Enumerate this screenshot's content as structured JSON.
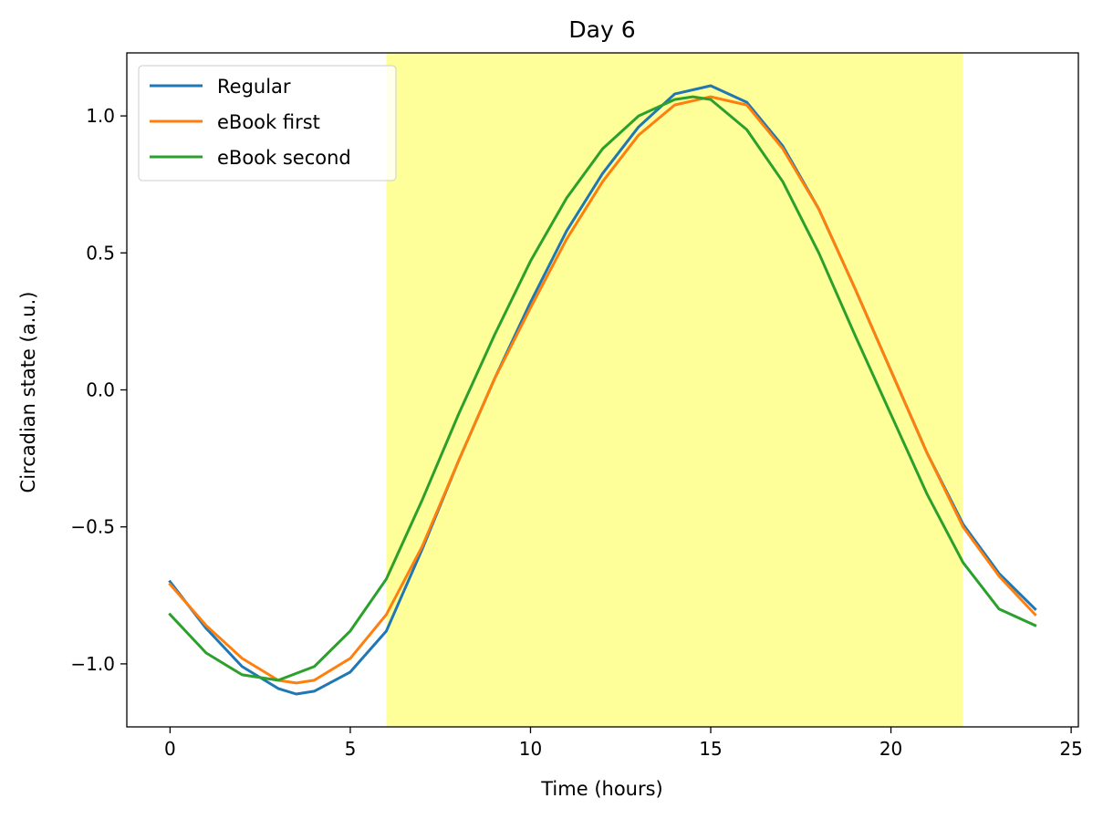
{
  "chart_data": {
    "type": "line",
    "title": "Day 6",
    "xlabel": "Time (hours)",
    "ylabel": "Circadian state (a.u.)",
    "xlim": [
      -1.2,
      25.2
    ],
    "ylim": [
      -1.23,
      1.23
    ],
    "xticks": [
      0,
      5,
      10,
      15,
      20,
      25
    ],
    "xtick_labels": [
      "0",
      "5",
      "10",
      "15",
      "20",
      "25"
    ],
    "yticks": [
      -1.0,
      -0.5,
      0.0,
      0.5,
      1.0
    ],
    "ytick_labels": [
      "−1.0",
      "−0.5",
      "0.0",
      "0.5",
      "1.0"
    ],
    "grid": false,
    "legend_position": "top-left",
    "light_period": {
      "start": 6,
      "end": 22,
      "color": "#ffff99"
    },
    "series": [
      {
        "name": "Regular",
        "color": "#1f77b4",
        "x": [
          0,
          1,
          2,
          3,
          3.5,
          4,
          5,
          6,
          7,
          8,
          9,
          10,
          11,
          12,
          13,
          14,
          15,
          16,
          17,
          18,
          19,
          20,
          21,
          22,
          23,
          24
        ],
        "y": [
          -0.7,
          -0.87,
          -1.01,
          -1.09,
          -1.11,
          -1.1,
          -1.03,
          -0.88,
          -0.58,
          -0.26,
          0.04,
          0.32,
          0.58,
          0.79,
          0.96,
          1.08,
          1.11,
          1.05,
          0.89,
          0.66,
          0.37,
          0.07,
          -0.23,
          -0.49,
          -0.67,
          -0.8
        ]
      },
      {
        "name": "eBook first",
        "color": "#ff7f0e",
        "x": [
          0,
          1,
          2,
          3,
          3.5,
          4,
          5,
          6,
          7,
          8,
          9,
          10,
          11,
          12,
          13,
          14,
          15,
          16,
          17,
          18,
          19,
          20,
          21,
          22,
          23,
          24
        ],
        "y": [
          -0.71,
          -0.86,
          -0.98,
          -1.06,
          -1.07,
          -1.06,
          -0.98,
          -0.82,
          -0.57,
          -0.26,
          0.04,
          0.3,
          0.55,
          0.76,
          0.93,
          1.04,
          1.07,
          1.04,
          0.88,
          0.66,
          0.37,
          0.07,
          -0.23,
          -0.5,
          -0.68,
          -0.82
        ]
      },
      {
        "name": "eBook second",
        "color": "#2ca02c",
        "x": [
          0,
          1,
          2,
          3,
          4,
          5,
          6,
          7,
          8,
          9,
          10,
          11,
          12,
          13,
          14,
          14.5,
          15,
          16,
          17,
          18,
          19,
          20,
          21,
          22,
          23,
          24
        ],
        "y": [
          -0.82,
          -0.96,
          -1.04,
          -1.06,
          -1.01,
          -0.88,
          -0.69,
          -0.4,
          -0.09,
          0.2,
          0.47,
          0.7,
          0.88,
          1.0,
          1.06,
          1.07,
          1.06,
          0.95,
          0.76,
          0.5,
          0.2,
          -0.09,
          -0.38,
          -0.63,
          -0.8,
          -0.86
        ]
      }
    ]
  }
}
